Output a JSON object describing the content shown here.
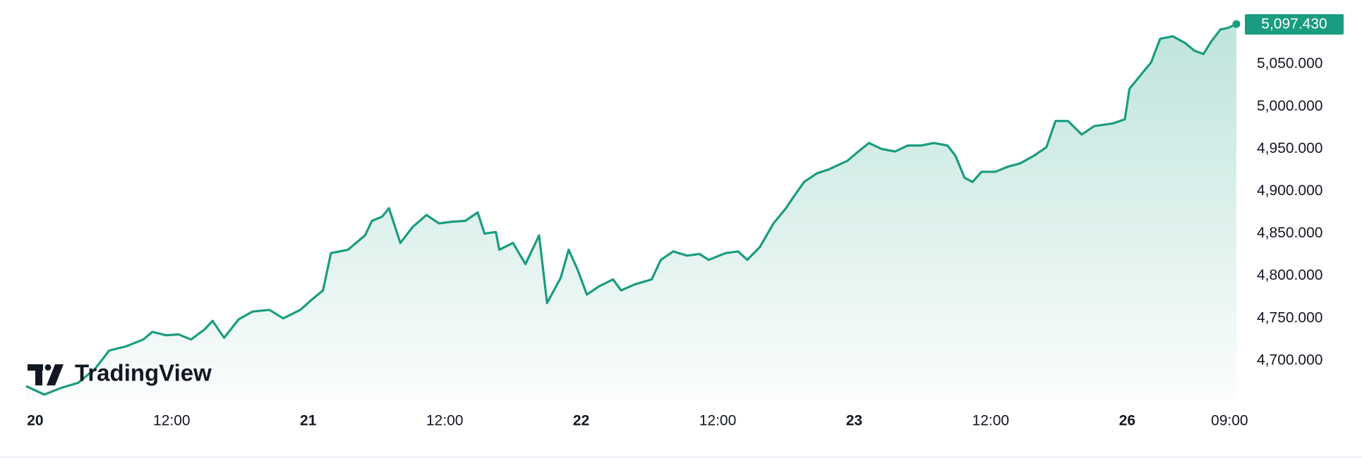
{
  "chart_data": {
    "type": "area-line",
    "logo": "TradingView",
    "price_label": "5,097.430",
    "color": "#1a9c80",
    "x": [
      -0.8,
      0.8,
      2.3,
      3.8,
      5.3,
      6.5,
      8.0,
      9.5,
      10.3,
      11.5,
      12.6,
      13.7,
      14.9,
      15.6,
      16.6,
      17.9,
      19.1,
      20.6,
      21.8,
      23.3,
      24.4,
      25.3,
      26.0,
      27.5,
      29.0,
      29.6,
      30.5,
      31.1,
      32.1,
      33.2,
      34.4,
      35.5,
      36.6,
      37.8,
      38.9,
      39.5,
      40.5,
      40.8,
      42.0,
      43.1,
      44.3,
      45.0,
      46.2,
      46.9,
      47.7,
      48.5,
      49.6,
      50.8,
      51.5,
      52.7,
      54.2,
      55.0,
      56.1,
      57.3,
      58.4,
      59.2,
      60.7,
      61.8,
      62.6,
      63.7,
      64.9,
      66.0,
      66.8,
      67.6,
      68.7,
      69.8,
      70.6,
      71.4,
      72.1,
      73.3,
      74.4,
      75.6,
      76.7,
      77.9,
      79.0,
      80.2,
      80.9,
      81.7,
      82.4,
      83.2,
      84.4,
      85.5,
      86.6,
      87.8,
      88.9,
      89.7,
      90.8,
      92.0,
      93.1,
      94.7,
      95.8,
      96.2,
      97.3,
      98.1,
      98.9,
      100.0,
      101.1,
      101.9,
      102.7,
      103.4,
      104.2,
      104.9,
      105.6
    ],
    "values": [
      4670,
      4660,
      4668,
      4674,
      4691,
      4712,
      4717,
      4725,
      4734,
      4730,
      4731,
      4725,
      4737,
      4747,
      4727,
      4749,
      4758,
      4760,
      4750,
      4760,
      4773,
      4783,
      4827,
      4831,
      4848,
      4865,
      4870,
      4880,
      4839,
      4858,
      4872,
      4862,
      4864,
      4865,
      4875,
      4850,
      4852,
      4831,
      4839,
      4814,
      4848,
      4768,
      4798,
      4831,
      4807,
      4778,
      4788,
      4796,
      4783,
      4790,
      4796,
      4819,
      4829,
      4824,
      4826,
      4819,
      4827,
      4829,
      4819,
      4834,
      4862,
      4880,
      4896,
      4911,
      4921,
      4926,
      4931,
      4936,
      4944,
      4957,
      4950,
      4947,
      4954,
      4954,
      4957,
      4954,
      4942,
      4916,
      4911,
      4923,
      4923,
      4929,
      4933,
      4942,
      4952,
      4983,
      4983,
      4967,
      4977,
      4980,
      4985,
      5021,
      5039,
      5052,
      5080,
      5083,
      5075,
      5066,
      5062,
      5077,
      5091,
      5093,
      5097.43
    ],
    "xlim": [
      -0.8,
      105.6
    ],
    "xticks": [
      {
        "value": 0,
        "label": "20"
      },
      {
        "value": 12,
        "label": "12:00"
      },
      {
        "value": 24,
        "label": "21"
      },
      {
        "value": 36,
        "label": "12:00"
      },
      {
        "value": 48,
        "label": "22"
      },
      {
        "value": 60,
        "label": "12:00"
      },
      {
        "value": 72,
        "label": "23"
      },
      {
        "value": 84,
        "label": "12:00"
      },
      {
        "value": 96,
        "label": "26"
      },
      {
        "value": 105,
        "label": "09:00"
      }
    ],
    "ylim": [
      4655,
      5105
    ],
    "yticks": [
      {
        "value": 4700,
        "label": "4,700.000"
      },
      {
        "value": 4750,
        "label": "4,750.000"
      },
      {
        "value": 4800,
        "label": "4,800.000"
      },
      {
        "value": 4850,
        "label": "4,850.000"
      },
      {
        "value": 4900,
        "label": "4,900.000"
      },
      {
        "value": 4950,
        "label": "4,950.000"
      },
      {
        "value": 5000,
        "label": "5,000.000"
      },
      {
        "value": 5050,
        "label": "5,050.000"
      }
    ],
    "grid": false
  }
}
